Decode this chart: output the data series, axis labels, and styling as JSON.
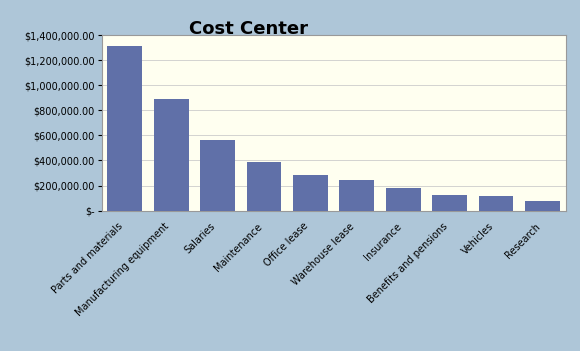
{
  "title": "Cost Center",
  "categories": [
    "Parts and materials",
    "Manufacturing equipment",
    "Salaries",
    "Maintenance",
    "Office lease",
    "Warehouse lease",
    "Insurance",
    "Benefits and pensions",
    "Vehicles",
    "Research"
  ],
  "values": [
    1310000,
    890000,
    560000,
    390000,
    285000,
    245000,
    180000,
    125000,
    120000,
    75000
  ],
  "bar_color": "#6070a8",
  "outer_bg_color": "#aec6d8",
  "inner_bg_color": "#fffff0",
  "frame_bg_color": "#ffffff",
  "ylim": [
    0,
    1400000
  ],
  "yticks": [
    0,
    200000,
    400000,
    600000,
    800000,
    1000000,
    1200000,
    1400000
  ],
  "ytick_labels": [
    "$-",
    "$200,000.00",
    "$400,000.00",
    "$600,000.00",
    "$800,000.00",
    "$1,000,000.00",
    "$1,200,000.00",
    "$1,400,000.00"
  ],
  "title_fontsize": 13,
  "tick_fontsize": 7,
  "grid_color": "#cccccc",
  "spine_color": "#999999"
}
